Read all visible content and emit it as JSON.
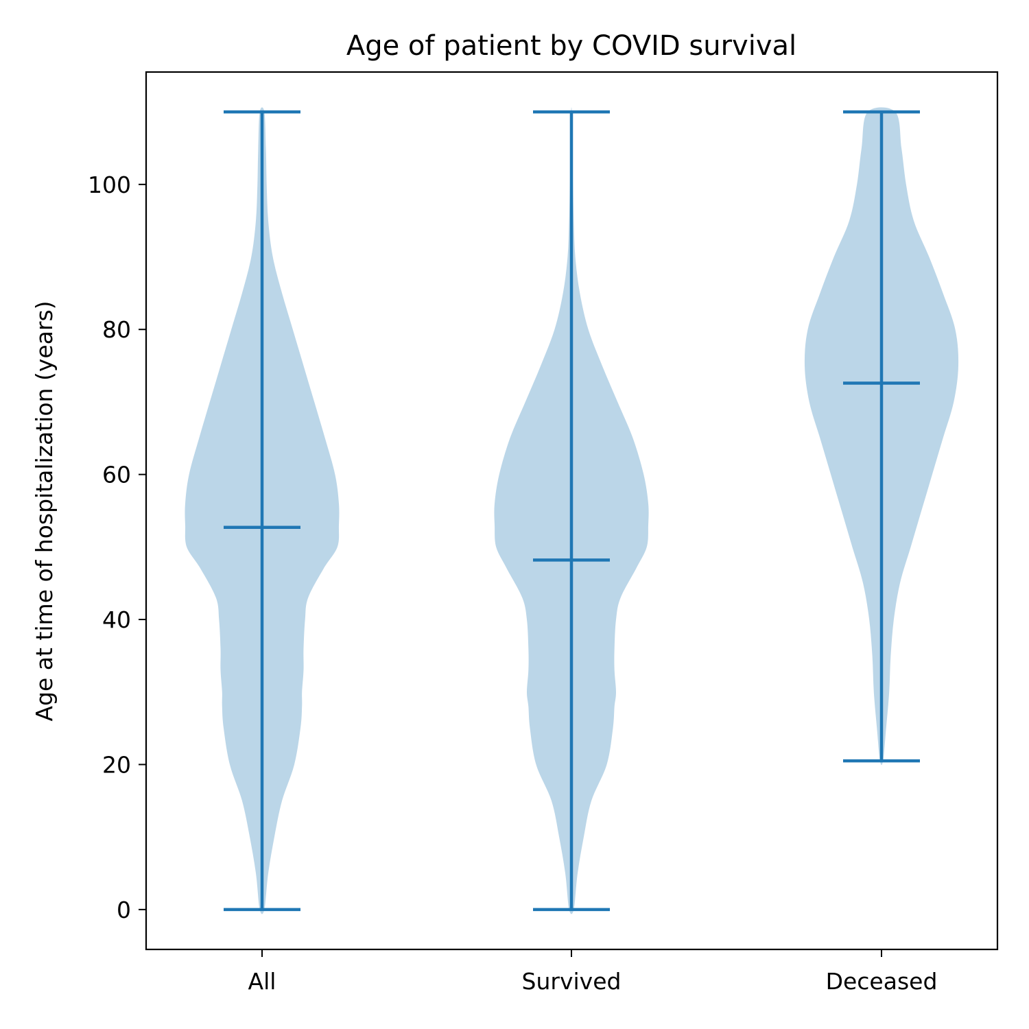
{
  "chart_data": {
    "type": "violin",
    "title": "Age of patient by COVID survival",
    "xlabel": "",
    "ylabel": "Age at time of hospitalization (years)",
    "categories": [
      "All",
      "Survived",
      "Deceased"
    ],
    "ylim": [
      -5.5,
      115.5
    ],
    "yticks": [
      0,
      20,
      40,
      60,
      80,
      100
    ],
    "grid": false,
    "colors": {
      "body": "#1f77b4",
      "body_alpha": 0.3,
      "lines": "#1f77b4"
    },
    "violins": [
      {
        "category": "All",
        "min": 0,
        "max": 110,
        "mean": 52.7,
        "density": [
          [
            0,
            0.03
          ],
          [
            5,
            0.08
          ],
          [
            10,
            0.16
          ],
          [
            15,
            0.26
          ],
          [
            20,
            0.42
          ],
          [
            25,
            0.5
          ],
          [
            28,
            0.52
          ],
          [
            30,
            0.52
          ],
          [
            33,
            0.54
          ],
          [
            36,
            0.54
          ],
          [
            40,
            0.56
          ],
          [
            43,
            0.6
          ],
          [
            47,
            0.8
          ],
          [
            50,
            0.98
          ],
          [
            53,
            1.0
          ],
          [
            56,
            1.0
          ],
          [
            60,
            0.95
          ],
          [
            65,
            0.82
          ],
          [
            70,
            0.68
          ],
          [
            75,
            0.54
          ],
          [
            80,
            0.4
          ],
          [
            85,
            0.26
          ],
          [
            90,
            0.14
          ],
          [
            95,
            0.08
          ],
          [
            100,
            0.06
          ],
          [
            105,
            0.05
          ],
          [
            110,
            0.03
          ]
        ]
      },
      {
        "category": "Survived",
        "min": 0,
        "max": 110,
        "mean": 48.2,
        "density": [
          [
            0,
            0.03
          ],
          [
            5,
            0.08
          ],
          [
            10,
            0.16
          ],
          [
            15,
            0.26
          ],
          [
            20,
            0.46
          ],
          [
            25,
            0.54
          ],
          [
            28,
            0.56
          ],
          [
            30,
            0.58
          ],
          [
            33,
            0.56
          ],
          [
            36,
            0.56
          ],
          [
            40,
            0.58
          ],
          [
            43,
            0.64
          ],
          [
            47,
            0.84
          ],
          [
            50,
            0.98
          ],
          [
            53,
            1.0
          ],
          [
            56,
            1.0
          ],
          [
            60,
            0.94
          ],
          [
            65,
            0.8
          ],
          [
            70,
            0.6
          ],
          [
            75,
            0.4
          ],
          [
            80,
            0.22
          ],
          [
            85,
            0.11
          ],
          [
            90,
            0.05
          ],
          [
            95,
            0.03
          ],
          [
            100,
            0.02
          ],
          [
            105,
            0.01
          ],
          [
            110,
            0.005
          ]
        ]
      },
      {
        "category": "Deceased",
        "min": 20.5,
        "max": 110,
        "mean": 72.6,
        "density": [
          [
            20.5,
            0.02
          ],
          [
            25,
            0.06
          ],
          [
            30,
            0.1
          ],
          [
            35,
            0.12
          ],
          [
            40,
            0.16
          ],
          [
            45,
            0.24
          ],
          [
            50,
            0.38
          ],
          [
            55,
            0.52
          ],
          [
            60,
            0.66
          ],
          [
            65,
            0.8
          ],
          [
            70,
            0.94
          ],
          [
            75,
            1.0
          ],
          [
            80,
            0.96
          ],
          [
            85,
            0.8
          ],
          [
            90,
            0.62
          ],
          [
            95,
            0.42
          ],
          [
            100,
            0.32
          ],
          [
            105,
            0.26
          ],
          [
            110,
            0.18
          ]
        ]
      }
    ]
  }
}
